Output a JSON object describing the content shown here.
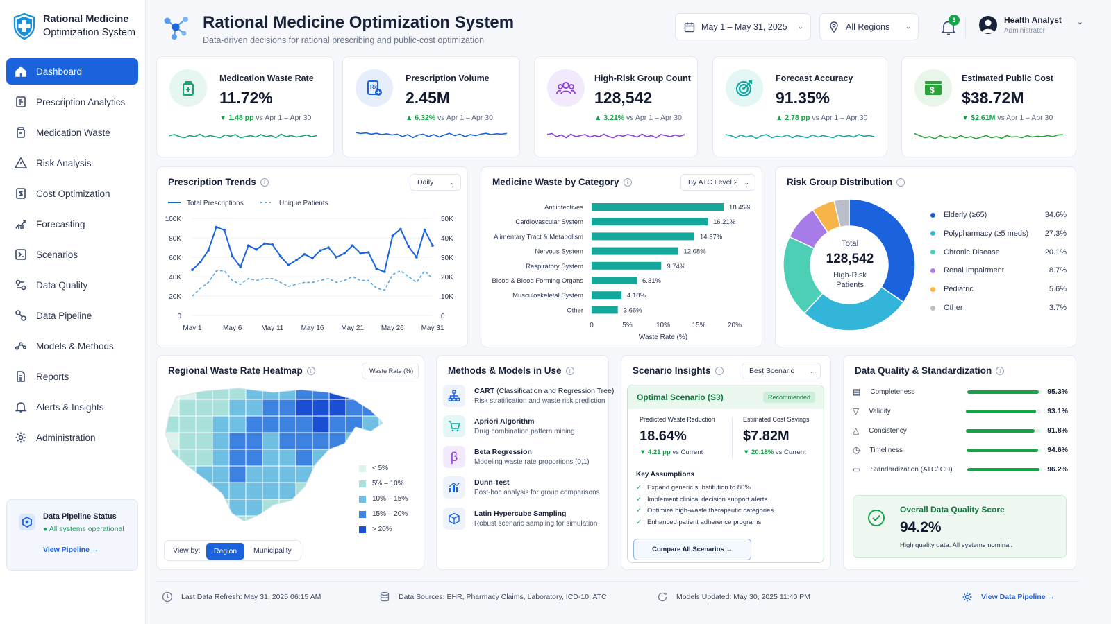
{
  "app": {
    "logo_line1": "Rational Medicine",
    "logo_line2": "Optimization System",
    "title": "Rational Medicine Optimization System",
    "subtitle": "Data-driven decisions for rational prescribing and public-cost optimization"
  },
  "header": {
    "date_range": "May 1 – May 31, 2025",
    "region": "All Regions",
    "notification_count": "3",
    "user_name": "Health Analyst",
    "user_role": "Administrator"
  },
  "sidebar": {
    "items": [
      {
        "label": "Dashboard",
        "icon": "home-icon",
        "active": true
      },
      {
        "label": "Prescription Analytics",
        "icon": "prescription-icon"
      },
      {
        "label": "Medication Waste",
        "icon": "medicine-bottle-icon"
      },
      {
        "label": "Risk Analysis",
        "icon": "warning-icon"
      },
      {
        "label": "Cost Optimization",
        "icon": "cost-icon"
      },
      {
        "label": "Forecasting",
        "icon": "forecast-icon"
      },
      {
        "label": "Scenarios",
        "icon": "scenarios-icon"
      },
      {
        "label": "Data Quality",
        "icon": "data-quality-icon"
      },
      {
        "label": "Data Pipeline",
        "icon": "pipeline-icon"
      },
      {
        "label": "Models & Methods",
        "icon": "models-icon"
      },
      {
        "label": "Reports",
        "icon": "report-icon"
      },
      {
        "label": "Alerts & Insights",
        "icon": "bell-icon"
      },
      {
        "label": "Administration",
        "icon": "gear-icon"
      }
    ],
    "pipeline_card": {
      "title": "Data Pipeline Status",
      "status": "All systems operational",
      "link": "View Pipeline →"
    }
  },
  "kpis": [
    {
      "label": "Medication Waste Rate",
      "value": "11.72%",
      "delta": "▼ 1.48 pp",
      "compare": " vs Apr 1 – Apr 30",
      "icon": "medicine-bottle-icon",
      "color": "#15a37a",
      "spark": [
        0.55,
        0.6,
        0.5,
        0.45,
        0.55,
        0.5,
        0.62,
        0.48,
        0.55,
        0.5,
        0.45,
        0.58,
        0.52,
        0.6,
        0.45,
        0.5,
        0.55,
        0.48,
        0.6,
        0.5,
        0.55,
        0.45,
        0.62,
        0.5,
        0.55,
        0.48,
        0.52,
        0.58,
        0.5,
        0.55
      ]
    },
    {
      "label": "Prescription Volume",
      "value": "2.45M",
      "delta": "▲ 6.32%",
      "compare": " vs Apr 1 – Apr 30",
      "icon": "prescription-icon",
      "color": "#1b63dc",
      "spark": [
        0.7,
        0.65,
        0.68,
        0.62,
        0.66,
        0.6,
        0.64,
        0.58,
        0.62,
        0.5,
        0.6,
        0.45,
        0.58,
        0.62,
        0.5,
        0.6,
        0.48,
        0.58,
        0.66,
        0.55,
        0.62,
        0.5,
        0.6,
        0.55,
        0.62,
        0.66,
        0.6,
        0.64,
        0.62,
        0.66
      ]
    },
    {
      "label": "High-Risk Group Count",
      "value": "128,542",
      "delta": "▲ 3.21%",
      "compare": " vs Apr 1 – Apr 30",
      "icon": "users-icon",
      "color": "#8b3fd9",
      "spark": [
        0.6,
        0.65,
        0.5,
        0.58,
        0.45,
        0.62,
        0.5,
        0.55,
        0.6,
        0.48,
        0.55,
        0.5,
        0.62,
        0.5,
        0.45,
        0.58,
        0.52,
        0.6,
        0.55,
        0.48,
        0.62,
        0.5,
        0.55,
        0.45,
        0.6,
        0.55,
        0.5,
        0.58,
        0.52,
        0.6
      ]
    },
    {
      "label": "Forecast Accuracy",
      "value": "91.35%",
      "delta": "▲ 2.78 pp",
      "compare": " vs Apr 1 – Apr 30",
      "icon": "target-icon",
      "color": "#14a8a0",
      "spark": [
        0.6,
        0.55,
        0.45,
        0.58,
        0.48,
        0.55,
        0.42,
        0.55,
        0.6,
        0.45,
        0.52,
        0.48,
        0.58,
        0.45,
        0.55,
        0.5,
        0.45,
        0.58,
        0.48,
        0.55,
        0.5,
        0.45,
        0.58,
        0.5,
        0.55,
        0.48,
        0.6,
        0.52,
        0.55,
        0.5
      ]
    },
    {
      "label": "Estimated Public Cost",
      "value": "$38.72M",
      "delta": "▼ $2.61M",
      "compare": " vs Apr 1 – Apr 30",
      "icon": "dollar-icon",
      "color": "#2aa33a",
      "spark": [
        0.65,
        0.55,
        0.45,
        0.5,
        0.4,
        0.55,
        0.45,
        0.5,
        0.42,
        0.55,
        0.45,
        0.5,
        0.4,
        0.48,
        0.55,
        0.45,
        0.5,
        0.42,
        0.55,
        0.48,
        0.5,
        0.45,
        0.55,
        0.48,
        0.52,
        0.5,
        0.55,
        0.5,
        0.58,
        0.6
      ]
    }
  ],
  "trends": {
    "title": "Prescription Trends",
    "period": "Daily",
    "legend_total": "Total Prescriptions",
    "legend_unique": "Unique Patients",
    "left_ticks": [
      "100K",
      "80K",
      "60K",
      "40K",
      "20K",
      "0"
    ],
    "right_ticks": [
      "50K",
      "40K",
      "30K",
      "20K",
      "10K",
      "0"
    ],
    "x_ticks": [
      "May 1",
      "May 6",
      "May 11",
      "May 16",
      "May 21",
      "May 26",
      "May 31"
    ]
  },
  "waste": {
    "title": "Medicine Waste by Category",
    "selector": "By ATC Level 2",
    "xlabel": "Waste Rate (%)",
    "x_ticks": [
      "0",
      "5%",
      "10%",
      "15%",
      "20%"
    ]
  },
  "risk": {
    "title": "Risk Group Distribution",
    "center_label": "Total",
    "center_value": "128,542",
    "center_sub1": "High-Risk",
    "center_sub2": "Patients"
  },
  "heatmap": {
    "title": "Regional Waste Rate Heatmap",
    "selector": "Waste Rate (%)",
    "legend": [
      "< 5%",
      "5% – 10%",
      "10% – 15%",
      "15% – 20%",
      "> 20%"
    ],
    "legend_colors": [
      "#dff3ee",
      "#a9e0da",
      "#6fbfe2",
      "#3d82e0",
      "#1a4fd4"
    ],
    "view_by": "View by:",
    "view_region": "Region",
    "view_municipality": "Municipality"
  },
  "methods": {
    "title": "Methods & Models in Use",
    "items": [
      {
        "name": "CART",
        "extra": " (Classification and Regression Tree)",
        "desc": "Risk stratification and waste risk prediction",
        "icon": "tree-icon"
      },
      {
        "name": "Apriori Algorithm",
        "extra": "",
        "desc": "Drug combination pattern mining",
        "icon": "cart-icon"
      },
      {
        "name": "Beta Regression",
        "extra": "",
        "desc": "Modeling waste rate proportions (0,1)",
        "icon": "beta-icon"
      },
      {
        "name": "Dunn Test",
        "extra": "",
        "desc": "Post-hoc analysis for group comparisons",
        "icon": "bar-chart-icon"
      },
      {
        "name": "Latin Hypercube Sampling",
        "extra": "",
        "desc": "Robust scenario sampling for simulation",
        "icon": "cube-icon"
      }
    ]
  },
  "scenario": {
    "title": "Scenario Insights",
    "selector": "Best Scenario",
    "name": "Optimal Scenario (S3)",
    "tag": "Recommended",
    "m1_label": "Predicted Waste Reduction",
    "m1_value": "18.64%",
    "m1_delta": "▼ 4.21 pp",
    "m1_compare": " vs Current",
    "m2_label": "Estimated Cost Savings",
    "m2_value": "$7.82M",
    "m2_delta": "▼ 20.18%",
    "m2_compare": " vs Current",
    "assumptions_title": "Key Assumptions",
    "assumptions": [
      "Expand generic substitution to 80%",
      "Implement clinical decision support alerts",
      "Optimize high-waste therapeutic categories",
      "Enhanced patient adherence programs"
    ],
    "button": "Compare All Scenarios →"
  },
  "quality": {
    "title": "Data Quality & Standardization",
    "items": [
      {
        "label": "Completeness",
        "value": "95.3%",
        "pct": 95.3,
        "icon": "checklist-icon"
      },
      {
        "label": "Validity",
        "value": "93.1%",
        "pct": 93.1,
        "icon": "filter-icon"
      },
      {
        "label": "Consistency",
        "value": "91.8%",
        "pct": 91.8,
        "icon": "consistency-icon"
      },
      {
        "label": "Timeliness",
        "value": "94.6%",
        "pct": 94.6,
        "icon": "clock-icon"
      },
      {
        "label": "Standardization (ATC/ICD)",
        "value": "96.2%",
        "pct": 96.2,
        "icon": "document-icon"
      }
    ],
    "overall_title": "Overall Data Quality Score",
    "overall_value": "94.2%",
    "overall_note": "High quality data. All systems nominal."
  },
  "footer": {
    "refresh": "Last Data Refresh: May 31, 2025 06:15 AM",
    "sources": "Data Sources: EHR, Pharmacy Claims, Laboratory, ICD-10, ATC",
    "models": "Models Updated: May 30, 2025 11:40 PM",
    "link": "View Data Pipeline →"
  },
  "chart_data": [
    {
      "type": "line",
      "title": "Prescription Trends",
      "x": [
        "May 1",
        "May 2",
        "May 3",
        "May 4",
        "May 5",
        "May 6",
        "May 7",
        "May 8",
        "May 9",
        "May 10",
        "May 11",
        "May 12",
        "May 13",
        "May 14",
        "May 15",
        "May 16",
        "May 17",
        "May 18",
        "May 19",
        "May 20",
        "May 21",
        "May 22",
        "May 23",
        "May 24",
        "May 25",
        "May 26",
        "May 27",
        "May 28",
        "May 29",
        "May 30",
        "May 31"
      ],
      "series": [
        {
          "name": "Total Prescriptions",
          "axis": "left",
          "values": [
            47000,
            55000,
            67000,
            91000,
            88000,
            61000,
            50000,
            72000,
            68000,
            74000,
            73000,
            61000,
            52000,
            57000,
            63000,
            59000,
            67000,
            70000,
            60000,
            64000,
            72000,
            64000,
            65000,
            48000,
            45000,
            82000,
            89000,
            71000,
            60000,
            88000,
            72000
          ]
        },
        {
          "name": "Unique Patients",
          "axis": "right",
          "values": [
            10000,
            14000,
            17000,
            23000,
            23000,
            18000,
            16000,
            19000,
            18000,
            19000,
            19000,
            17000,
            15000,
            16000,
            17000,
            17000,
            18000,
            19000,
            17000,
            18000,
            20000,
            18000,
            18000,
            14000,
            13000,
            21000,
            23000,
            20000,
            17000,
            23000,
            19000
          ]
        }
      ],
      "ylim_left": [
        0,
        100000
      ],
      "ylim_right": [
        0,
        50000
      ]
    },
    {
      "type": "bar",
      "title": "Medicine Waste by Category",
      "categories": [
        "Antiinfectives",
        "Cardiovascular System",
        "Alimentary Tract & Metabolism",
        "Nervous System",
        "Respiratory System",
        "Blood & Blood Forming Organs",
        "Musculoskeletal System",
        "Other"
      ],
      "values": [
        18.45,
        16.21,
        14.37,
        12.08,
        9.74,
        6.31,
        4.18,
        3.66
      ],
      "labels": [
        "18.45%",
        "16.21%",
        "14.37%",
        "12.08%",
        "9.74%",
        "6.31%",
        "4.18%",
        "3.66%"
      ],
      "xlabel": "Waste Rate (%)",
      "xlim": [
        0,
        20
      ]
    },
    {
      "type": "pie",
      "title": "Risk Group Distribution",
      "categories": [
        "Elderly (≥65)",
        "Polypharmacy (≥5 meds)",
        "Chronic Disease",
        "Renal Impairment",
        "Pediatric",
        "Other"
      ],
      "values": [
        34.6,
        27.3,
        20.1,
        8.7,
        5.6,
        3.7
      ],
      "labels": [
        "34.6%",
        "27.3%",
        "20.1%",
        "8.7%",
        "5.6%",
        "3.7%"
      ],
      "colors": [
        "#1b63dc",
        "#33b5d9",
        "#4ccfb4",
        "#a77be8",
        "#f6b44a",
        "#b9bec8"
      ]
    }
  ]
}
